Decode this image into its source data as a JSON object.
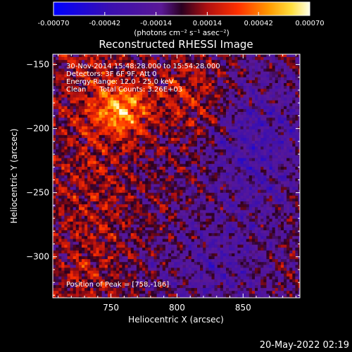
{
  "colorbar": {
    "min": -0.0007,
    "max": 0.0007,
    "tick_labels": [
      "-0.00070",
      "-0.00042",
      "-0.00014",
      "0.00014",
      "0.00042",
      "0.00070"
    ],
    "tick_values": [
      -0.0007,
      -0.00042,
      -0.00014,
      0.00014,
      0.00042,
      0.0007
    ],
    "unit_label": "(photons cm⁻² s⁻¹ asec⁻²)",
    "colormap": "blue-purple-red-yellow-white"
  },
  "chart_data": {
    "type": "heatmap",
    "title": "Reconstructed RHESSI Image",
    "xlabel": "Heliocentric X (arcsec)",
    "ylabel": "Heliocentric Y (arcsec)",
    "xlim": [
      706,
      893
    ],
    "ylim": [
      -332,
      -142
    ],
    "x_ticks": [
      750,
      800,
      850
    ],
    "y_ticks": [
      -150,
      -200,
      -250,
      -300
    ],
    "x_tick_labels": [
      "750",
      "800",
      "850"
    ],
    "y_tick_labels": [
      "−150",
      "−200",
      "−250",
      "−300"
    ],
    "annotations": [
      "30-Nov-2014 15:48:28.000 to 15:54:28.000",
      "Detectors: 3F 6F 9F, Att 0",
      "Energy Range: 12.0 - 25.0 keV",
      "Clean      Total Counts: 3.26E+03"
    ],
    "peak_label": "Position of Peak = [758,-186]",
    "peak": [
      758,
      -186
    ],
    "grid": false
  },
  "footer": {
    "date": "20-May-2022 02:19"
  }
}
